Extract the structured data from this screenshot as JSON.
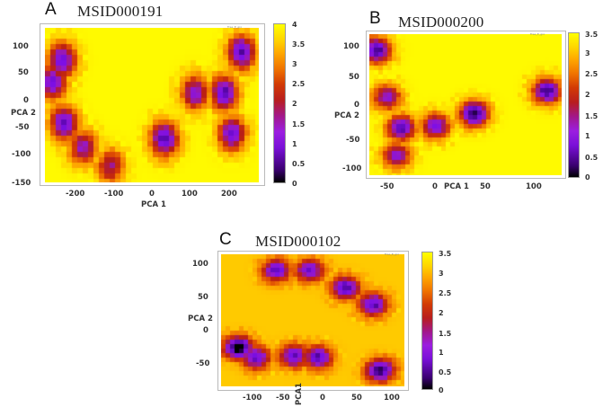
{
  "figure": {
    "panels": [
      {
        "letter": "A",
        "title": "MSID000191",
        "xlabel": "PCA 1",
        "ylabel": "PCA 2",
        "xticks": [
          "-200",
          "-100",
          "0",
          "100",
          "200"
        ],
        "yticks": [
          "100",
          "50",
          "0",
          "-50",
          "-100",
          "-150"
        ],
        "colorbar_ticks": [
          "4",
          "3.5",
          "3",
          "2.5",
          "2",
          "1.5",
          "1",
          "0.5",
          "0"
        ],
        "key_text": "Free_E_gro"
      },
      {
        "letter": "B",
        "title": "MSID000200",
        "xlabel": "PCA 1",
        "ylabel": "PCA 2",
        "xticks": [
          "-50",
          "0",
          "50",
          "100"
        ],
        "yticks": [
          "100",
          "50",
          "0",
          "-50",
          "-100"
        ],
        "colorbar_ticks": [
          "3.5",
          "3",
          "2.5",
          "2",
          "1.5",
          "1",
          "0.5",
          "0"
        ],
        "key_text": "Free_E_gro"
      },
      {
        "letter": "C",
        "title": "MSID000102",
        "xlabel": "PCA1",
        "ylabel": "PCA 2",
        "xticks": [
          "-100",
          "-50",
          "0",
          "50",
          "100"
        ],
        "yticks": [
          "100",
          "50",
          "0",
          "-50"
        ],
        "colorbar_ticks": [
          "3.5",
          "3",
          "2.5",
          "2",
          "1.5",
          "1",
          "0.5",
          "0"
        ],
        "key_text": "Free_E_gro"
      }
    ]
  },
  "chart_data": [
    {
      "type": "heatmap",
      "title": "MSID000191",
      "panel": "A",
      "xlabel": "PCA 1",
      "ylabel": "PCA 2",
      "xlim": [
        -290,
        265
      ],
      "ylim": [
        -150,
        135
      ],
      "xticks": [
        -200,
        -100,
        0,
        100,
        200
      ],
      "yticks": [
        -150,
        -100,
        -50,
        0,
        50,
        100
      ],
      "colorbar": {
        "min": 0,
        "max": 4,
        "ticks": [
          0,
          0.5,
          1,
          1.5,
          2,
          2.5,
          3,
          3.5,
          4
        ],
        "colormap": "black-purple-red-orange-yellow"
      },
      "background_value": 4,
      "low_energy_basins": [
        {
          "x": -245,
          "y": 75,
          "value": 1.2
        },
        {
          "x": -270,
          "y": 35,
          "value": 1.3
        },
        {
          "x": -240,
          "y": -40,
          "value": 1.2
        },
        {
          "x": -190,
          "y": -85,
          "value": 1.8
        },
        {
          "x": -120,
          "y": -120,
          "value": 2.1
        },
        {
          "x": 20,
          "y": -70,
          "value": 1.0
        },
        {
          "x": 100,
          "y": 15,
          "value": 1.6
        },
        {
          "x": 175,
          "y": 15,
          "value": 1.1
        },
        {
          "x": 220,
          "y": 90,
          "value": 1.0
        },
        {
          "x": 195,
          "y": -60,
          "value": 1.3
        }
      ],
      "grid": false,
      "legend_position": "top-right (unreadable small key)"
    },
    {
      "type": "heatmap",
      "title": "MSID000200",
      "panel": "B",
      "xlabel": "PCA 1",
      "ylabel": "PCA 2",
      "xlim": [
        -68,
        130
      ],
      "ylim": [
        -112,
        118
      ],
      "xticks": [
        -50,
        0,
        50,
        100
      ],
      "yticks": [
        -100,
        -50,
        0,
        50,
        100
      ],
      "colorbar": {
        "min": 0,
        "max": 3.5,
        "ticks": [
          0,
          0.5,
          1,
          1.5,
          2,
          2.5,
          3,
          3.5
        ],
        "colormap": "black-purple-red-orange-yellow"
      },
      "background_value": 3.5,
      "low_energy_basins": [
        {
          "x": -60,
          "y": 92,
          "value": 0.8
        },
        {
          "x": -50,
          "y": 15,
          "value": 1.5
        },
        {
          "x": -35,
          "y": -35,
          "value": 0.9
        },
        {
          "x": -40,
          "y": -80,
          "value": 1.5
        },
        {
          "x": 0,
          "y": -32,
          "value": 1.2
        },
        {
          "x": 40,
          "y": -12,
          "value": 0.5
        },
        {
          "x": 115,
          "y": 25,
          "value": 0.7
        }
      ],
      "grid": false,
      "legend_position": "top-right (unreadable small key)"
    },
    {
      "type": "heatmap",
      "title": "MSID000102",
      "panel": "C",
      "xlabel": "PCA1",
      "ylabel": "PCA 2",
      "xlim": [
        -140,
        125
      ],
      "ylim": [
        -85,
        120
      ],
      "xticks": [
        -100,
        -50,
        0,
        50,
        100
      ],
      "yticks": [
        -50,
        0,
        50,
        100
      ],
      "colorbar": {
        "min": 0,
        "max": 3.5,
        "ticks": [
          0,
          0.5,
          1,
          1.5,
          2,
          2.5,
          3,
          3.5
        ],
        "colormap": "black-purple-red-orange-yellow"
      },
      "background_value": 3.2,
      "low_energy_basins": [
        {
          "x": -60,
          "y": 95,
          "value": 1.0
        },
        {
          "x": -12,
          "y": 95,
          "value": 1.1
        },
        {
          "x": 40,
          "y": 68,
          "value": 0.8
        },
        {
          "x": 80,
          "y": 42,
          "value": 0.9
        },
        {
          "x": -115,
          "y": -25,
          "value": 0.2
        },
        {
          "x": -90,
          "y": -40,
          "value": 1.0
        },
        {
          "x": -35,
          "y": -38,
          "value": 1.0
        },
        {
          "x": 0,
          "y": -40,
          "value": 0.9
        },
        {
          "x": 90,
          "y": -60,
          "value": 0.6
        }
      ],
      "grid": false,
      "legend_position": "top-right (unreadable small key)"
    }
  ]
}
